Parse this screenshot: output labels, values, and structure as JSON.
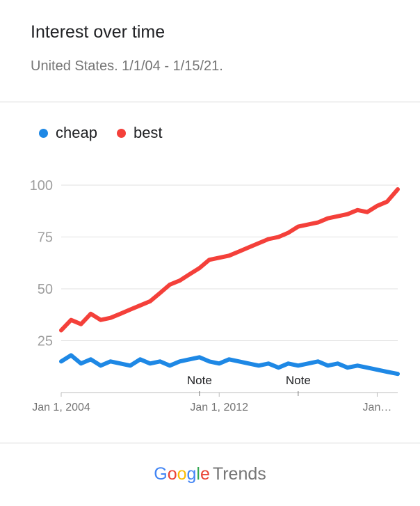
{
  "header": {
    "title": "Interest over time",
    "subtitle": "United States. 1/1/04 - 1/15/21."
  },
  "footer": {
    "brand_google": "Google",
    "brand_trends": "Trends",
    "google_colors": [
      "#4285F4",
      "#EA4335",
      "#FBBC05",
      "#4285F4",
      "#34A853",
      "#EA4335"
    ]
  },
  "chart_data": {
    "type": "line",
    "ylim": [
      0,
      100
    ],
    "yticks": [
      25,
      50,
      75,
      100
    ],
    "grid": true,
    "legend_position": "top-left",
    "xlim": [
      "2004-01-01",
      "2021-01-15"
    ],
    "x_tick_labels": [
      {
        "date": "2004-01-01",
        "label": "Jan 1, 2004"
      },
      {
        "date": "2012-01-01",
        "label": "Jan 1, 2012"
      },
      {
        "date": "2020-01-01",
        "label": "Jan…"
      }
    ],
    "annotations": [
      {
        "date": "2011-01-01",
        "label": "Note"
      },
      {
        "date": "2016-01-01",
        "label": "Note"
      }
    ],
    "series": [
      {
        "name": "cheap",
        "color": "#1E88E5",
        "x": [
          "2004-01-01",
          "2004-07-01",
          "2005-01-01",
          "2005-07-01",
          "2006-01-01",
          "2006-07-01",
          "2007-01-01",
          "2007-07-01",
          "2008-01-01",
          "2008-07-01",
          "2009-01-01",
          "2009-07-01",
          "2010-01-01",
          "2010-07-01",
          "2011-01-01",
          "2011-07-01",
          "2012-01-01",
          "2012-07-01",
          "2013-01-01",
          "2013-07-01",
          "2014-01-01",
          "2014-07-01",
          "2015-01-01",
          "2015-07-01",
          "2016-01-01",
          "2016-07-01",
          "2017-01-01",
          "2017-07-01",
          "2018-01-01",
          "2018-07-01",
          "2019-01-01",
          "2019-07-01",
          "2020-01-01",
          "2020-07-01",
          "2021-01-15"
        ],
        "values": [
          15,
          18,
          14,
          16,
          13,
          15,
          14,
          13,
          16,
          14,
          15,
          13,
          15,
          16,
          17,
          15,
          14,
          16,
          15,
          14,
          13,
          14,
          12,
          14,
          13,
          14,
          15,
          13,
          14,
          12,
          13,
          12,
          11,
          10,
          9
        ]
      },
      {
        "name": "best",
        "color": "#F4403A",
        "x": [
          "2004-01-01",
          "2004-07-01",
          "2005-01-01",
          "2005-07-01",
          "2006-01-01",
          "2006-07-01",
          "2007-01-01",
          "2007-07-01",
          "2008-01-01",
          "2008-07-01",
          "2009-01-01",
          "2009-07-01",
          "2010-01-01",
          "2010-07-01",
          "2011-01-01",
          "2011-07-01",
          "2012-01-01",
          "2012-07-01",
          "2013-01-01",
          "2013-07-01",
          "2014-01-01",
          "2014-07-01",
          "2015-01-01",
          "2015-07-01",
          "2016-01-01",
          "2016-07-01",
          "2017-01-01",
          "2017-07-01",
          "2018-01-01",
          "2018-07-01",
          "2019-01-01",
          "2019-07-01",
          "2020-01-01",
          "2020-07-01",
          "2021-01-15"
        ],
        "values": [
          30,
          35,
          33,
          38,
          35,
          36,
          38,
          40,
          42,
          44,
          48,
          52,
          54,
          57,
          60,
          64,
          65,
          66,
          68,
          70,
          72,
          74,
          75,
          77,
          80,
          81,
          82,
          84,
          85,
          86,
          88,
          87,
          90,
          92,
          98
        ]
      }
    ]
  }
}
